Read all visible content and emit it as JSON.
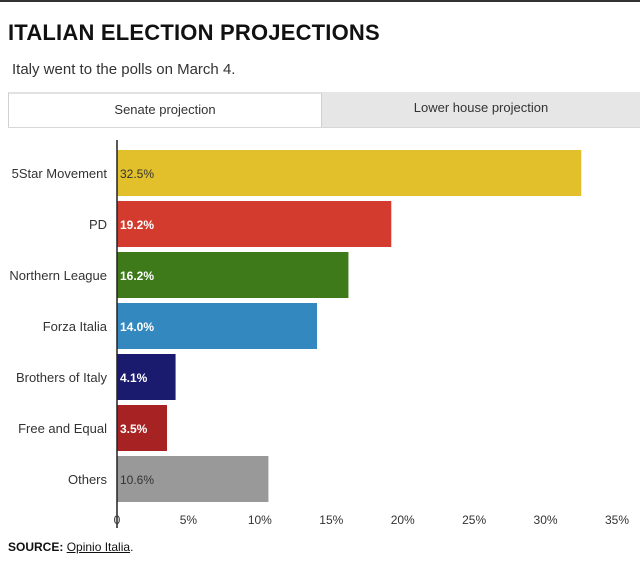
{
  "header": {
    "title": "ITALIAN ELECTION PROJECTIONS",
    "subtitle": "Italy went to the polls on March 4."
  },
  "tabs": [
    {
      "label": "Senate projection",
      "active": true
    },
    {
      "label": "Lower house projection",
      "active": false
    }
  ],
  "chart_data": {
    "type": "bar",
    "orientation": "horizontal",
    "categories": [
      "5Star Movement",
      "PD",
      "Northern League",
      "Forza Italia",
      "Brothers of Italy",
      "Free and Equal",
      "Others"
    ],
    "values": [
      32.5,
      19.2,
      16.2,
      14.0,
      4.1,
      3.5,
      10.6
    ],
    "value_labels": [
      "32.5%",
      "19.2%",
      "16.2%",
      "14.0%",
      "4.1%",
      "3.5%",
      "10.6%"
    ],
    "colors": [
      "#e1c02b",
      "#d33b2f",
      "#3e7a1a",
      "#3388bf",
      "#1a1a6e",
      "#a72323",
      "#999999"
    ],
    "label_colors": [
      "#333333",
      "#ffffff",
      "#ffffff",
      "#ffffff",
      "#ffffff",
      "#ffffff",
      "#333333"
    ],
    "xlim": [
      0,
      35
    ],
    "xticks": [
      0,
      5,
      10,
      15,
      20,
      25,
      30,
      35
    ],
    "xtick_labels": [
      "0",
      "5%",
      "10%",
      "15%",
      "20%",
      "25%",
      "30%",
      "35%"
    ],
    "grid": false
  },
  "source": {
    "prefix": "SOURCE:",
    "link_text": "Opinio Italia",
    "suffix": "."
  }
}
